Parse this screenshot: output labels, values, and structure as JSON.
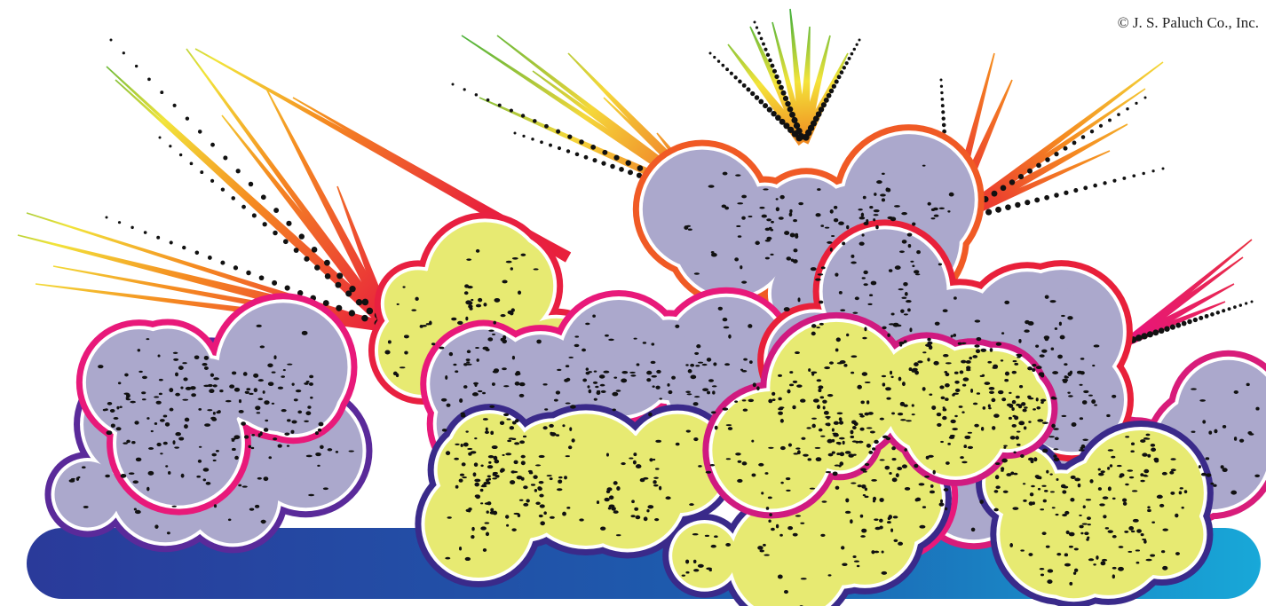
{
  "credit": "© J. S. Paluch Co., Inc."
}
